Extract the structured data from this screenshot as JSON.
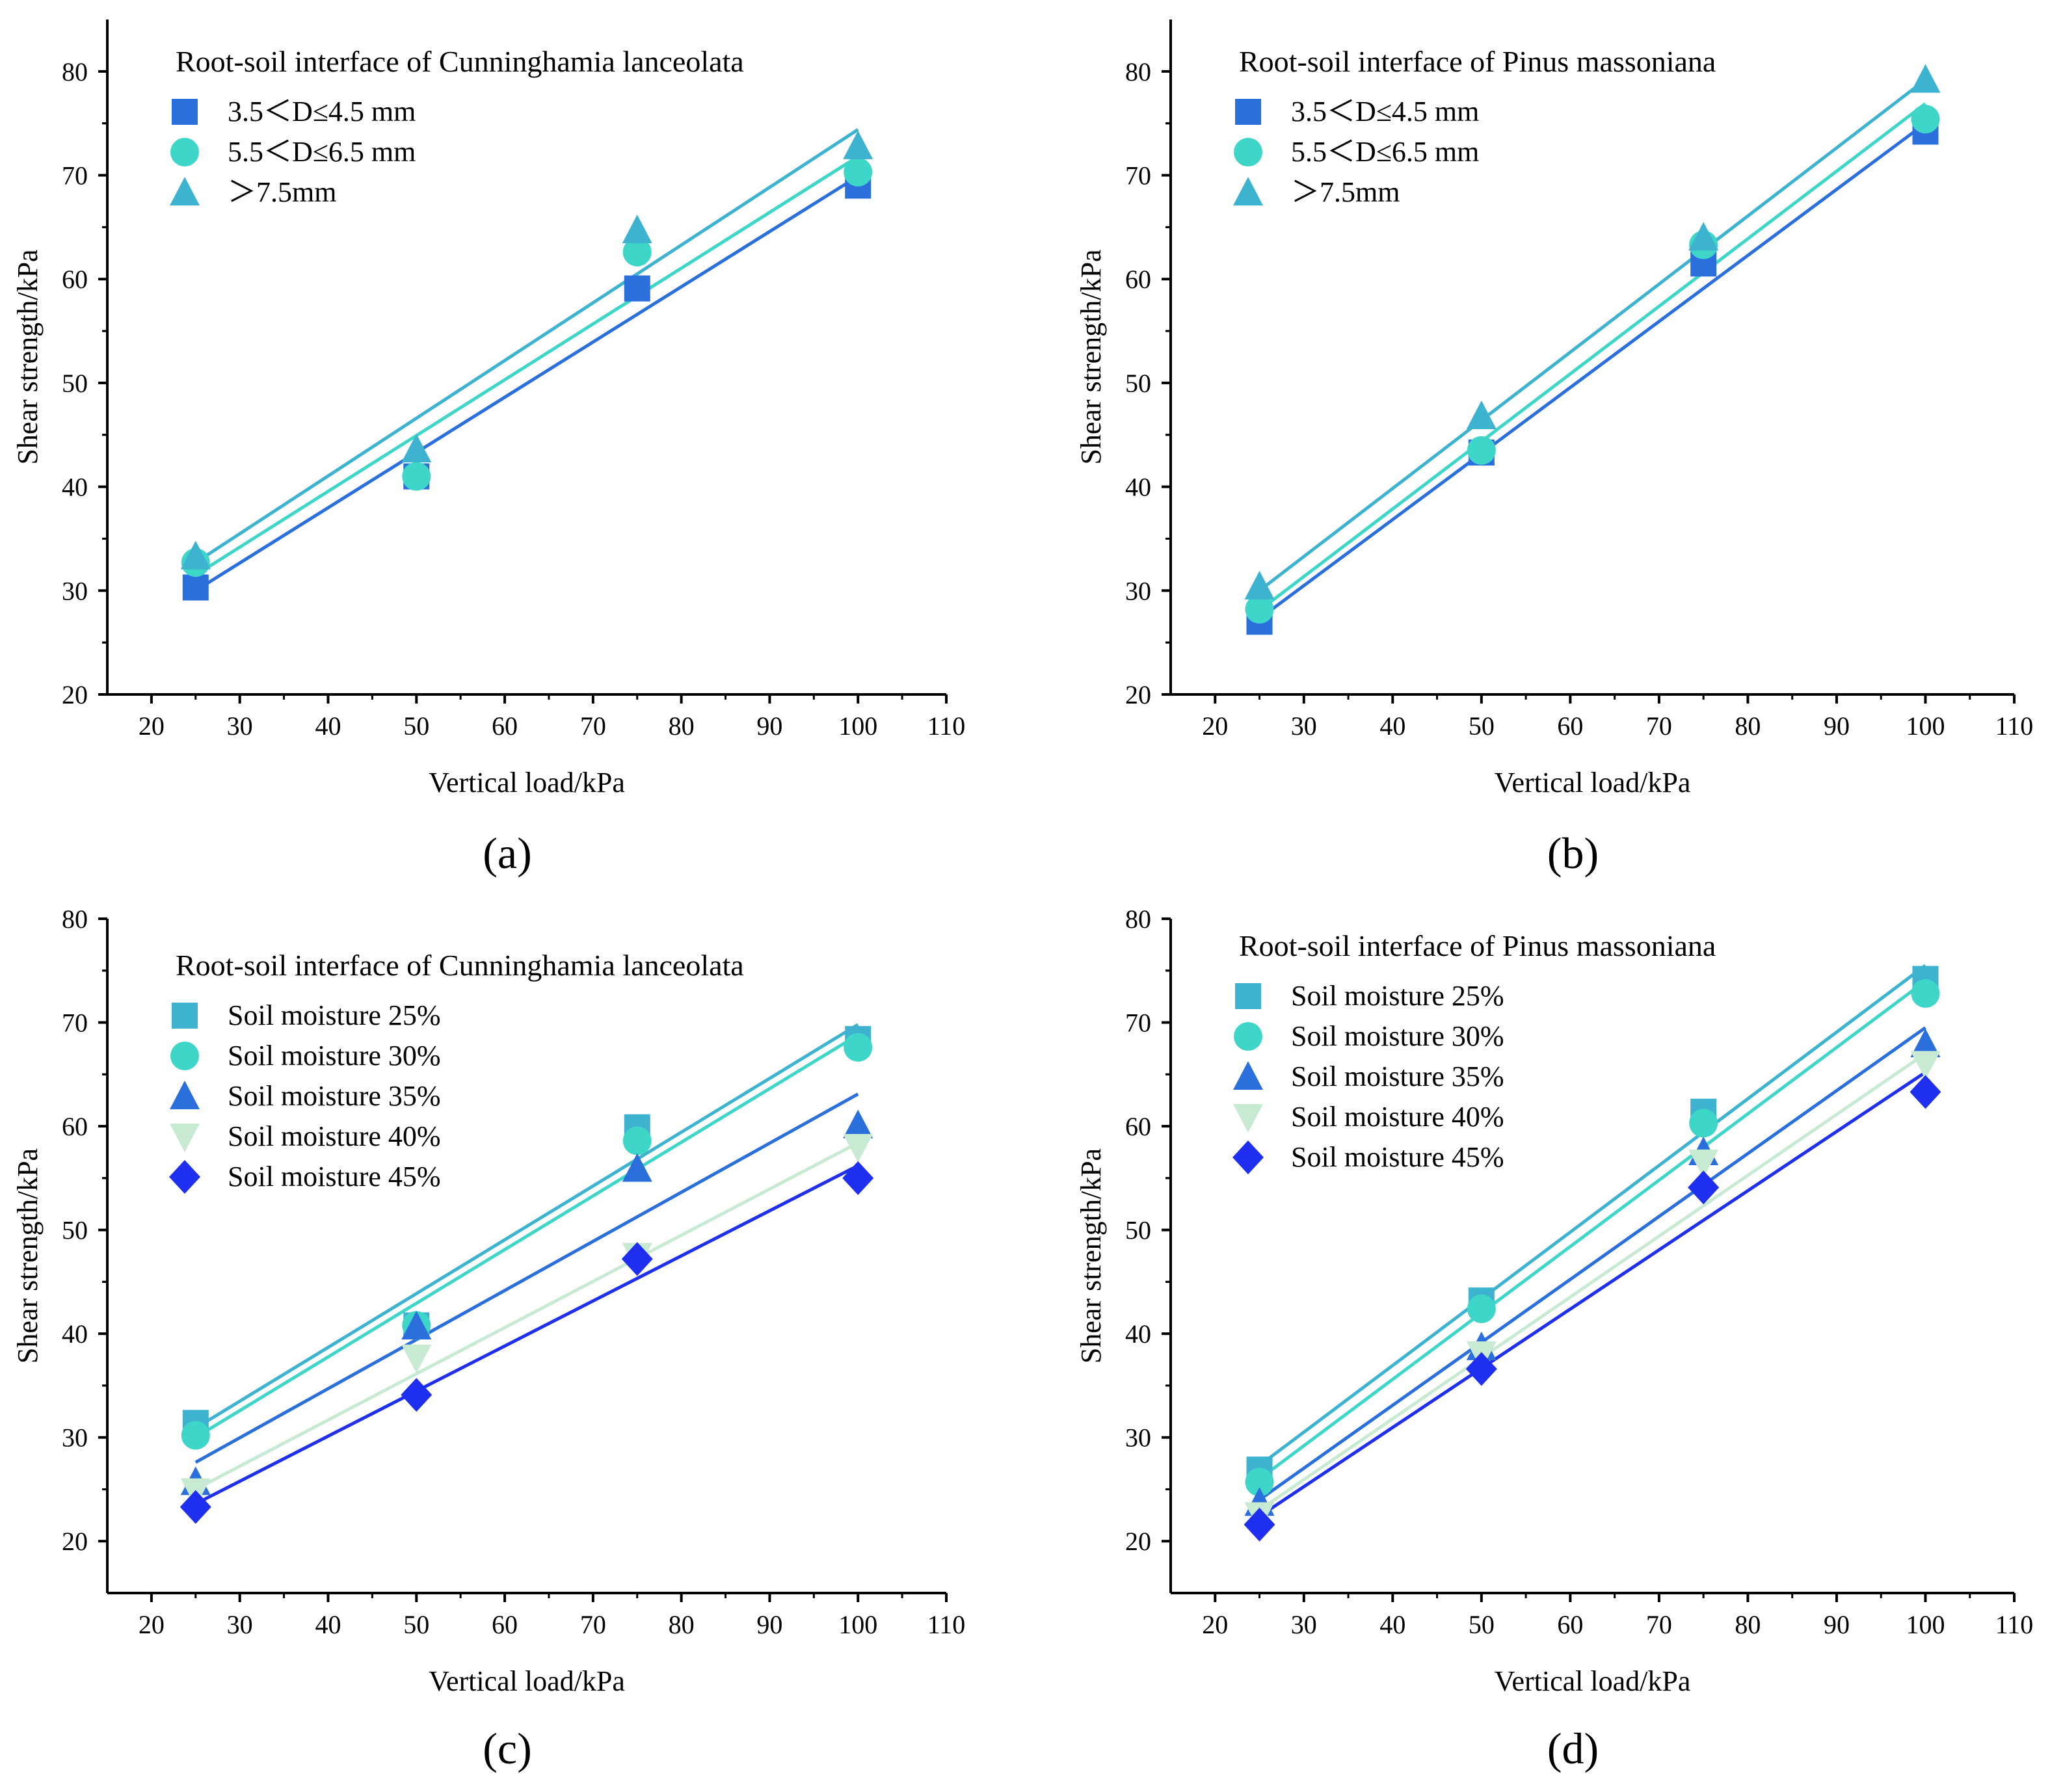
{
  "chart_data": [
    {
      "panel": "a",
      "panel_label": "(a)",
      "type": "scatter",
      "legend_title": "Root-soil interface of Cunninghamia lanceolata",
      "xlabel": "Vertical load/kPa",
      "ylabel": "Shear strength/kPa",
      "xlim": [
        15,
        110
      ],
      "ylim": [
        20,
        85
      ],
      "xticks": [
        20,
        30,
        40,
        50,
        60,
        70,
        80,
        90,
        100,
        110
      ],
      "yticks": [
        20,
        30,
        40,
        50,
        60,
        70,
        80
      ],
      "legend_position": "top-left",
      "series": [
        {
          "name": "3.5＜D≤4.5 mm",
          "marker": "square",
          "color": "#2a6fdb",
          "x": [
            25,
            50,
            75,
            100
          ],
          "y": [
            30.3,
            41.0,
            59.1,
            69.0
          ],
          "fit": [
            [
              25,
              30.0
            ],
            [
              100,
              69.9
            ]
          ]
        },
        {
          "name": "5.5＜D≤6.5 mm",
          "marker": "circle",
          "color": "#3ed6c8",
          "x": [
            25,
            50,
            75,
            100
          ],
          "y": [
            32.7,
            41.0,
            62.6,
            70.3
          ],
          "fit": [
            [
              25,
              31.5
            ],
            [
              100,
              71.8
            ]
          ]
        },
        {
          "name": "＞7.5mm",
          "marker": "triangle",
          "color": "#3db3cf",
          "x": [
            25,
            50,
            75,
            100
          ],
          "y": [
            33.3,
            43.6,
            64.7,
            72.8
          ],
          "fit": [
            [
              25,
              32.7
            ],
            [
              100,
              74.4
            ]
          ]
        }
      ]
    },
    {
      "panel": "b",
      "panel_label": "(b)",
      "type": "scatter",
      "legend_title": "Root-soil interface of Pinus massoniana",
      "xlabel": "Vertical load/kPa",
      "ylabel": "Shear strength/kPa",
      "xlim": [
        15,
        110
      ],
      "ylim": [
        20,
        85
      ],
      "xticks": [
        20,
        30,
        40,
        50,
        60,
        70,
        80,
        90,
        100,
        110
      ],
      "yticks": [
        20,
        30,
        40,
        50,
        60,
        70,
        80
      ],
      "legend_position": "top-left",
      "series": [
        {
          "name": "3.5＜D≤4.5 mm",
          "marker": "square",
          "color": "#2a6fdb",
          "x": [
            25,
            50,
            75,
            100
          ],
          "y": [
            27.0,
            43.3,
            61.5,
            74.2
          ],
          "fit": [
            [
              25,
              27.3
            ],
            [
              100,
              75.0
            ]
          ]
        },
        {
          "name": "5.5＜D≤6.5 mm",
          "marker": "circle",
          "color": "#3ed6c8",
          "x": [
            25,
            50,
            75,
            100
          ],
          "y": [
            28.2,
            43.5,
            63.3,
            75.4
          ],
          "fit": [
            [
              25,
              28.1
            ],
            [
              100,
              76.9
            ]
          ]
        },
        {
          "name": "＞7.5mm",
          "marker": "triangle",
          "color": "#3db3cf",
          "x": [
            25,
            50,
            75,
            100
          ],
          "y": [
            30.4,
            46.8,
            64.0,
            79.2
          ],
          "fit": [
            [
              25,
              30.0
            ],
            [
              100,
              79.2
            ]
          ]
        }
      ]
    },
    {
      "panel": "c",
      "panel_label": "(c)",
      "type": "scatter",
      "legend_title": "Root-soil interface of Cunninghamia lanceolata",
      "xlabel": "Vertical load/kPa",
      "ylabel": "Shear strength/kPa",
      "xlim": [
        15,
        110
      ],
      "ylim": [
        15,
        80
      ],
      "xticks": [
        20,
        30,
        40,
        50,
        60,
        70,
        80,
        90,
        100,
        110
      ],
      "yticks": [
        20,
        30,
        40,
        50,
        60,
        70,
        80
      ],
      "legend_position": "top-left",
      "series": [
        {
          "name": "Soil moisture 25%",
          "marker": "square",
          "color": "#3db3cf",
          "x": [
            25,
            50,
            75,
            100
          ],
          "y": [
            31.4,
            40.8,
            59.9,
            68.4
          ],
          "fit": [
            [
              25,
              30.9
            ],
            [
              100,
              69.8
            ]
          ]
        },
        {
          "name": "Soil moisture 30%",
          "marker": "circle",
          "color": "#3ed6c8",
          "x": [
            25,
            50,
            75,
            100
          ],
          "y": [
            30.2,
            40.8,
            58.6,
            67.6
          ],
          "fit": [
            [
              25,
              30.0
            ],
            [
              100,
              68.8
            ]
          ]
        },
        {
          "name": "Soil moisture 35%",
          "marker": "triangle",
          "color": "#2a6fdb",
          "x": [
            25,
            50,
            75,
            100
          ],
          "y": [
            25.7,
            40.7,
            55.9,
            60.1
          ],
          "fit": [
            [
              25,
              27.6
            ],
            [
              100,
              63.1
            ]
          ]
        },
        {
          "name": "Soil moisture 40%",
          "marker": "triangle-down",
          "color": "#c9ead2",
          "x": [
            25,
            50,
            75,
            100
          ],
          "y": [
            24.8,
            37.7,
            47.5,
            58.0
          ],
          "fit": [
            [
              25,
              25.0
            ],
            [
              100,
              58.4
            ]
          ]
        },
        {
          "name": "Soil moisture 45%",
          "marker": "diamond",
          "color": "#1f2ff0",
          "x": [
            25,
            50,
            75,
            100
          ],
          "y": [
            23.3,
            34.1,
            47.2,
            55.0
          ],
          "fit": [
            [
              25,
              23.6
            ],
            [
              100,
              56.2
            ]
          ]
        }
      ]
    },
    {
      "panel": "d",
      "panel_label": "(d)",
      "type": "scatter",
      "legend_title": "Root-soil interface of Pinus massoniana",
      "xlabel": "Vertical load/kPa",
      "ylabel": "Shear strength/kPa",
      "xlim": [
        15,
        110
      ],
      "ylim": [
        15,
        80
      ],
      "xticks": [
        20,
        30,
        40,
        50,
        60,
        70,
        80,
        90,
        100,
        110
      ],
      "yticks": [
        20,
        30,
        40,
        50,
        60,
        70,
        80
      ],
      "legend_position": "top-left",
      "series": [
        {
          "name": "Soil moisture 25%",
          "marker": "square",
          "color": "#3db3cf",
          "x": [
            25,
            50,
            75,
            100
          ],
          "y": [
            26.9,
            43.2,
            61.4,
            74.2
          ],
          "fit": [
            [
              25,
              27.3
            ],
            [
              100,
              75.5
            ]
          ]
        },
        {
          "name": "Soil moisture 30%",
          "marker": "circle",
          "color": "#3ed6c8",
          "x": [
            25,
            50,
            75,
            100
          ],
          "y": [
            25.7,
            42.4,
            60.3,
            72.8
          ],
          "fit": [
            [
              25,
              26.0
            ],
            [
              100,
              74.0
            ]
          ]
        },
        {
          "name": "Soil moisture 35%",
          "marker": "triangle",
          "color": "#2a6fdb",
          "x": [
            25,
            50,
            75,
            100
          ],
          "y": [
            23.7,
            38.7,
            57.5,
            67.9
          ],
          "fit": [
            [
              25,
              24.0
            ],
            [
              100,
              69.5
            ]
          ]
        },
        {
          "name": "Soil moisture 40%",
          "marker": "triangle-down",
          "color": "#c9ead2",
          "x": [
            25,
            50,
            75,
            100
          ],
          "y": [
            22.5,
            38.0,
            56.5,
            66.0
          ],
          "fit": [
            [
              25,
              23.0
            ],
            [
              100,
              67.0
            ]
          ]
        },
        {
          "name": "Soil moisture 45%",
          "marker": "diamond",
          "color": "#1f2ff0",
          "x": [
            25,
            50,
            75,
            100
          ],
          "y": [
            21.6,
            36.6,
            54.1,
            63.3
          ],
          "fit": [
            [
              25,
              22.4
            ],
            [
              100,
              65.2
            ]
          ]
        }
      ]
    }
  ]
}
